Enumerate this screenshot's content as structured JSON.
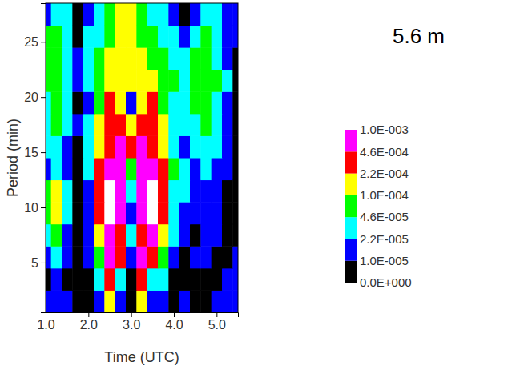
{
  "chart_data": {
    "type": "heatmap",
    "title": "5.6 m",
    "x_label": "Time (UTC)",
    "y_label": "Period (min)",
    "x": [
      1.0,
      1.25,
      1.5,
      1.75,
      2.0,
      2.25,
      2.5,
      2.75,
      3.0,
      3.25,
      3.5,
      3.75,
      4.0,
      4.25,
      4.5,
      4.75,
      5.0,
      5.25,
      5.5
    ],
    "y": [
      1.5,
      3.5,
      5.5,
      7.5,
      9.5,
      11.5,
      13.5,
      15.5,
      17.5,
      19.5,
      21.5,
      23.5,
      25.5,
      27.5
    ],
    "z": [
      [
        1.5e-05,
        1.5e-05,
        1.5e-05,
        5e-06,
        5e-06,
        1.5e-05,
        0.00015,
        1.5e-05,
        5e-06,
        0.00015,
        1.5e-05,
        1.5e-05,
        5e-06,
        1.5e-05,
        5e-06,
        5e-06,
        1.5e-05,
        1.5e-05,
        1.5e-05
      ],
      [
        5e-06,
        1.5e-05,
        5e-06,
        5e-06,
        5e-06,
        3e-05,
        0.0003,
        3e-05,
        5e-06,
        0.0003,
        3e-05,
        3e-05,
        5e-06,
        5e-06,
        5e-06,
        5e-06,
        5e-06,
        1.5e-05,
        1.5e-05
      ],
      [
        1.5e-05,
        3e-05,
        1.5e-05,
        5e-06,
        1.5e-05,
        7e-05,
        0.0007,
        0.0003,
        1.5e-05,
        0.0007,
        0.0003,
        7e-05,
        1.5e-05,
        5e-06,
        1.5e-05,
        1.5e-05,
        5e-06,
        5e-06,
        1.5e-05
      ],
      [
        3e-05,
        7e-05,
        1.5e-05,
        5e-06,
        1.5e-05,
        0.00015,
        0.0007,
        0.0003,
        3e-05,
        0.0003,
        0.0007,
        0.00015,
        3e-05,
        1.5e-05,
        5e-06,
        1.5e-05,
        1.5e-05,
        5e-06,
        5e-06
      ],
      [
        7e-05,
        0.00015,
        3e-05,
        5e-06,
        1.5e-05,
        0.0003,
        0.0015,
        0.0007,
        1.5e-05,
        0.0007,
        0.0015,
        0.0003,
        3e-05,
        1.5e-05,
        1.5e-05,
        1.5e-05,
        1.5e-05,
        5e-06,
        5e-06
      ],
      [
        7e-05,
        0.00015,
        3e-05,
        5e-06,
        1.5e-05,
        0.0003,
        0.0015,
        0.0007,
        3e-05,
        0.0007,
        0.0015,
        0.0003,
        3e-05,
        3e-05,
        1.5e-05,
        1.5e-05,
        1.5e-05,
        5e-06,
        5e-06
      ],
      [
        1.5e-05,
        3e-05,
        1.5e-05,
        5e-06,
        3e-05,
        0.0003,
        0.0007,
        0.0007,
        7e-05,
        0.0007,
        0.0007,
        0.0003,
        7e-05,
        3e-05,
        1.5e-05,
        3e-05,
        1.5e-05,
        1.5e-05,
        5e-06
      ],
      [
        3e-05,
        3e-05,
        1.5e-05,
        5e-06,
        3e-05,
        0.00015,
        0.0003,
        0.0007,
        0.0003,
        0.0007,
        0.0003,
        0.00015,
        3e-05,
        1.5e-05,
        3e-05,
        3e-05,
        3e-05,
        1.5e-05,
        5e-06
      ],
      [
        3e-05,
        7e-05,
        3e-05,
        1.5e-05,
        3e-05,
        0.00015,
        0.0003,
        0.0003,
        0.00015,
        0.0003,
        0.0003,
        0.00015,
        3e-05,
        3e-05,
        3e-05,
        7e-05,
        3e-05,
        1.5e-05,
        5e-06
      ],
      [
        3e-05,
        7e-05,
        3e-05,
        5e-06,
        1.5e-05,
        7e-05,
        0.0003,
        0.00015,
        1.5e-05,
        0.00015,
        0.0003,
        7e-05,
        3e-05,
        3e-05,
        7e-05,
        7e-05,
        3e-05,
        1.5e-05,
        5e-06
      ],
      [
        7e-05,
        7e-05,
        3e-05,
        1.5e-05,
        3e-05,
        7e-05,
        0.00015,
        0.00015,
        0.00015,
        0.00015,
        0.00015,
        7e-05,
        7e-05,
        3e-05,
        7e-05,
        7e-05,
        7e-05,
        3e-05,
        5e-06
      ],
      [
        7e-05,
        7e-05,
        3e-05,
        1.5e-05,
        3e-05,
        7e-05,
        0.00015,
        0.00015,
        0.00015,
        0.00015,
        7e-05,
        7e-05,
        3e-05,
        3e-05,
        7e-05,
        7e-05,
        3e-05,
        1.5e-05,
        5e-06
      ],
      [
        7e-05,
        7e-05,
        3e-05,
        5e-06,
        3e-05,
        3e-05,
        7e-05,
        0.00015,
        0.00015,
        7e-05,
        7e-05,
        3e-05,
        3e-05,
        1.5e-05,
        3e-05,
        7e-05,
        3e-05,
        1.5e-05,
        1.5e-05
      ],
      [
        1.5e-05,
        3e-05,
        3e-05,
        5e-06,
        1.5e-05,
        3e-05,
        7e-05,
        0.00015,
        0.00015,
        7e-05,
        3e-05,
        3e-05,
        1.5e-05,
        5e-06,
        1.5e-05,
        3e-05,
        3e-05,
        1.5e-05,
        1.5e-05
      ]
    ],
    "xlim": [
      1.0,
      5.5
    ],
    "ylim": [
      0.5,
      28.5
    ],
    "xticks": [
      {
        "value": 1.0,
        "label": "1.0"
      },
      {
        "value": 2.0,
        "label": "2.0"
      },
      {
        "value": 3.0,
        "label": "3.0"
      },
      {
        "value": 4.0,
        "label": "4.0"
      },
      {
        "value": 5.0,
        "label": "5.0"
      }
    ],
    "yticks": [
      5,
      10,
      15,
      20,
      25
    ],
    "colorbar": {
      "ticks": [
        {
          "value": 0,
          "label": "0.0E+000"
        },
        {
          "value": 1e-05,
          "label": "1.0E-005"
        },
        {
          "value": 2.2e-05,
          "label": "2.2E-005"
        },
        {
          "value": 4.6e-05,
          "label": "4.6E-005"
        },
        {
          "value": 0.0001,
          "label": "1.0E-004"
        },
        {
          "value": 0.00022,
          "label": "2.2E-004"
        },
        {
          "value": 0.00046,
          "label": "4.6E-004"
        },
        {
          "value": 0.001,
          "label": "1.0E-003"
        }
      ],
      "colors": [
        "#000000",
        "#0000ff",
        "#00ffff",
        "#00ff00",
        "#ffff00",
        "#ff0000",
        "#ff00ff",
        "#ffffff"
      ]
    }
  }
}
